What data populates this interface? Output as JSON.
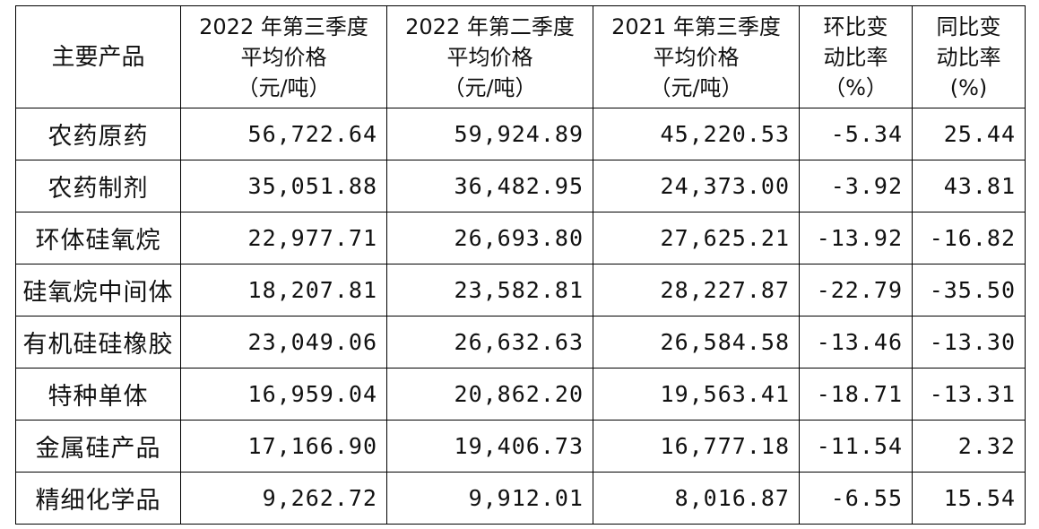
{
  "table": {
    "headers": [
      {
        "lines": [
          "主要产品"
        ]
      },
      {
        "lines": [
          "2022 年第三季度",
          "平均价格",
          "（元/吨）"
        ]
      },
      {
        "lines": [
          "2022 年第二季度",
          "平均价格",
          "（元/吨）"
        ]
      },
      {
        "lines": [
          "2021 年第三季度",
          "平均价格",
          "（元/吨）"
        ]
      },
      {
        "lines": [
          "环比变",
          "动比率",
          "（%）"
        ]
      },
      {
        "lines": [
          "同比变",
          "动比率",
          "(%)"
        ]
      }
    ],
    "rows": [
      {
        "product": "农药原药",
        "q3_2022": "56,722.64",
        "q2_2022": "59,924.89",
        "q3_2021": "45,220.53",
        "qoq": "-5.34",
        "yoy": "25.44"
      },
      {
        "product": "农药制剂",
        "q3_2022": "35,051.88",
        "q2_2022": "36,482.95",
        "q3_2021": "24,373.00",
        "qoq": "-3.92",
        "yoy": "43.81"
      },
      {
        "product": "环体硅氧烷",
        "q3_2022": "22,977.71",
        "q2_2022": "26,693.80",
        "q3_2021": "27,625.21",
        "qoq": "-13.92",
        "yoy": "-16.82"
      },
      {
        "product": "硅氧烷中间体",
        "q3_2022": "18,207.81",
        "q2_2022": "23,582.81",
        "q3_2021": "28,227.87",
        "qoq": "-22.79",
        "yoy": "-35.50"
      },
      {
        "product": "有机硅硅橡胶",
        "q3_2022": "23,049.06",
        "q2_2022": "26,632.63",
        "q3_2021": "26,584.58",
        "qoq": "-13.46",
        "yoy": "-13.30"
      },
      {
        "product": "特种单体",
        "q3_2022": "16,959.04",
        "q2_2022": "20,862.20",
        "q3_2021": "19,563.41",
        "qoq": "-18.71",
        "yoy": "-13.31"
      },
      {
        "product": "金属硅产品",
        "q3_2022": "17,166.90",
        "q2_2022": "19,406.73",
        "q3_2021": "16,777.18",
        "qoq": "-11.54",
        "yoy": "2.32"
      },
      {
        "product": "精细化学品",
        "q3_2022": "9,262.72",
        "q2_2022": "9,912.01",
        "q3_2021": "8,016.87",
        "qoq": "-6.55",
        "yoy": "15.54"
      }
    ]
  }
}
